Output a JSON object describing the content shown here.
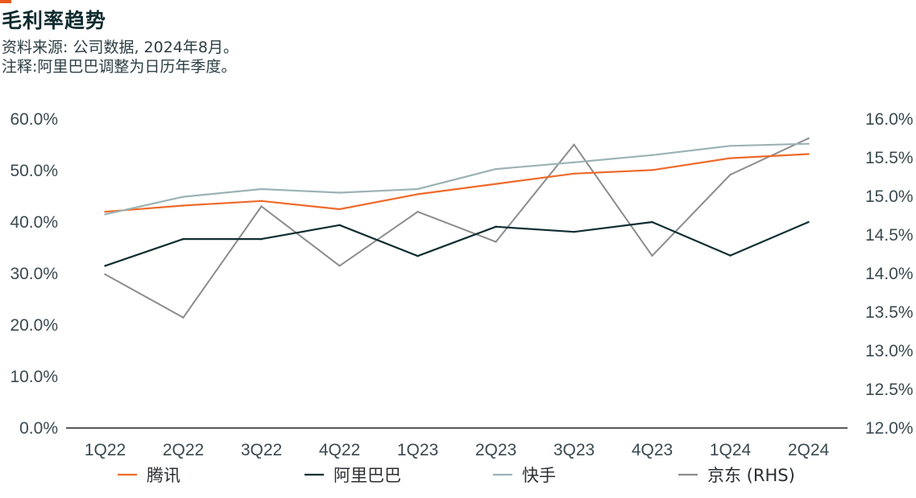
{
  "header": {
    "title": "毛利率趋势",
    "source_note": "资料来源: 公司数据, 2024年8月。",
    "footnote": "注释:阿里巴巴调整为日历年季度。"
  },
  "colors": {
    "accent": "#e8581c",
    "tencent": "#ee6a2a",
    "alibaba": "#0f2f33",
    "kuaishou": "#9bb3b5",
    "jd": "#8c8c8c",
    "axis": "#222222"
  },
  "chart_data": {
    "type": "line",
    "categories": [
      "1Q22",
      "2Q22",
      "3Q22",
      "4Q22",
      "1Q23",
      "2Q23",
      "3Q23",
      "4Q23",
      "1Q24",
      "2Q24"
    ],
    "left_axis": {
      "ylim": [
        0,
        60
      ],
      "ticks": [
        "0.0%",
        "10.0%",
        "20.0%",
        "30.0%",
        "40.0%",
        "50.0%",
        "60.0%"
      ]
    },
    "right_axis": {
      "ylim": [
        12.0,
        16.0
      ],
      "ticks": [
        "12.0%",
        "12.5%",
        "13.0%",
        "13.5%",
        "14.0%",
        "14.5%",
        "15.0%",
        "15.5%",
        "16.0%"
      ]
    },
    "series": [
      {
        "name": "腾讯",
        "axis": "left",
        "color_key": "tencent",
        "values": [
          42.0,
          43.2,
          44.1,
          42.5,
          45.4,
          47.4,
          49.4,
          50.1,
          52.4,
          53.2
        ]
      },
      {
        "name": "阿里巴巴",
        "axis": "left",
        "color_key": "alibaba",
        "values": [
          31.5,
          36.7,
          36.7,
          39.4,
          33.4,
          39.1,
          38.1,
          40.0,
          33.5,
          40.0
        ]
      },
      {
        "name": "快手",
        "axis": "left",
        "color_key": "kuaishou",
        "values": [
          41.5,
          44.9,
          46.4,
          45.7,
          46.4,
          50.3,
          51.6,
          53.0,
          54.8,
          55.2
        ]
      },
      {
        "name": "京东",
        "axis": "right",
        "color_key": "jd",
        "values": [
          13.99,
          13.43,
          14.87,
          14.1,
          14.8,
          14.41,
          15.67,
          14.23,
          15.28,
          15.75
        ]
      }
    ],
    "legend": {
      "placement": "bottom",
      "items": [
        {
          "label": "腾讯",
          "color_key": "tencent"
        },
        {
          "label": "阿里巴巴",
          "color_key": "alibaba"
        },
        {
          "label": "快手",
          "color_key": "kuaishou"
        },
        {
          "label": "京东 (RHS)",
          "color_key": "jd"
        }
      ]
    },
    "grid": false
  }
}
